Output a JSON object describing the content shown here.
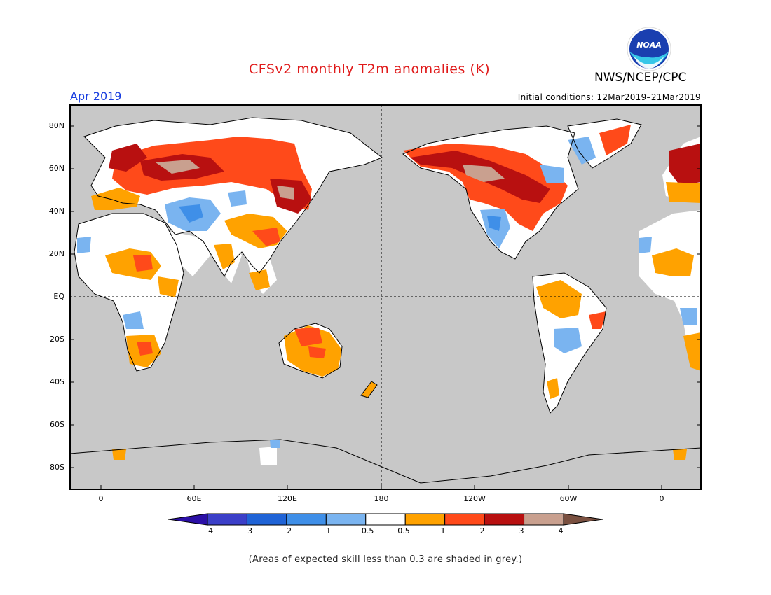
{
  "header": {
    "title": "CFSv2 monthly T2m anomalies (K)",
    "agency": "NWS/NCEP/CPC",
    "logo_text": "NOAA",
    "month": "Apr 2019",
    "initial_conditions": "Initial conditions: 12Mar2019–21Mar2019"
  },
  "map": {
    "lat_labels": [
      "80N",
      "60N",
      "40N",
      "20N",
      "EQ",
      "20S",
      "40S",
      "60S",
      "80S"
    ],
    "lon_labels": [
      "0",
      "60E",
      "120E",
      "180",
      "120W",
      "60W",
      "0"
    ],
    "background_grey": "#c8c8c8"
  },
  "colorbar": {
    "tick_labels": [
      "−4",
      "−3",
      "−2",
      "−1",
      "−0.5",
      "0.5",
      "1",
      "2",
      "3",
      "4"
    ],
    "colors": [
      "#2b0fa6",
      "#3b3fc8",
      "#1f63d6",
      "#3f8fe8",
      "#7ab4f0",
      "#ffffff",
      "#ffa200",
      "#ff4a1a",
      "#b81010",
      "#c9a08f",
      "#7a5040"
    ]
  },
  "footnote": "(Areas of expected skill less than 0.3 are shaded in grey.)"
}
